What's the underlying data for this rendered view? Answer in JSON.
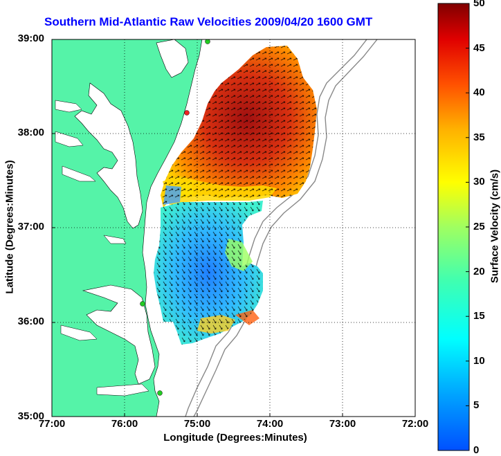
{
  "title": "Southern Mid-Atlantic Raw Velocities 2009/04/20 1600 GMT",
  "axes": {
    "xlabel": "Longitude (Degrees:Minutes)",
    "ylabel": "Latitude (Degrees:Minutes)",
    "x_ticks": [
      "77:00",
      "76:00",
      "75:00",
      "74:00",
      "73:00",
      "72:00"
    ],
    "y_ticks": [
      "39:00",
      "38:00",
      "37:00",
      "36:00",
      "35:00"
    ],
    "xlim": [
      "77:00 W",
      "72:00 W"
    ],
    "ylim": [
      "35:00 N",
      "39:00 N"
    ],
    "grid": "dotted"
  },
  "colorbar": {
    "label": "Surface Velocity (cm/s)",
    "ticks": [
      "50",
      "45",
      "40",
      "35",
      "30",
      "25",
      "20",
      "15",
      "10",
      "5",
      "0"
    ],
    "range": [
      0,
      50
    ],
    "colormap": "jet"
  },
  "colors": {
    "land": "#55f3a8",
    "ocean": "#ffffff",
    "title": "#0000ff",
    "site_marker": "#22cc22",
    "site_marker_alt": "#ee2222",
    "bathymetry": "#888888"
  }
}
